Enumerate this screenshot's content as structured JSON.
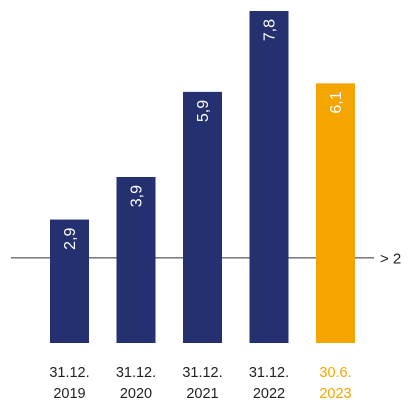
{
  "chart_data": {
    "type": "bar",
    "categories": [
      {
        "line1": "31.12.",
        "line2": "2019"
      },
      {
        "line1": "31.12.",
        "line2": "2020"
      },
      {
        "line1": "31.12.",
        "line2": "2021"
      },
      {
        "line1": "31.12.",
        "line2": "2022"
      },
      {
        "line1": "30.6.",
        "line2": "2023"
      }
    ],
    "values": [
      2.9,
      3.9,
      5.9,
      7.8,
      6.1
    ],
    "value_labels": [
      "2,9",
      "3,9",
      "5,9",
      "7,8",
      "6,1"
    ],
    "highlight_index": 4,
    "reference_line": {
      "value": 2,
      "label": "> 2"
    },
    "ylim": [
      0,
      7.8
    ],
    "grid": false,
    "colors": {
      "bar": "#24306f",
      "highlight": "#f5a500",
      "reference_line": "#333333",
      "tick_text": "#222222",
      "highlight_text": "#f5a500",
      "value_label": "#ffffff"
    }
  }
}
